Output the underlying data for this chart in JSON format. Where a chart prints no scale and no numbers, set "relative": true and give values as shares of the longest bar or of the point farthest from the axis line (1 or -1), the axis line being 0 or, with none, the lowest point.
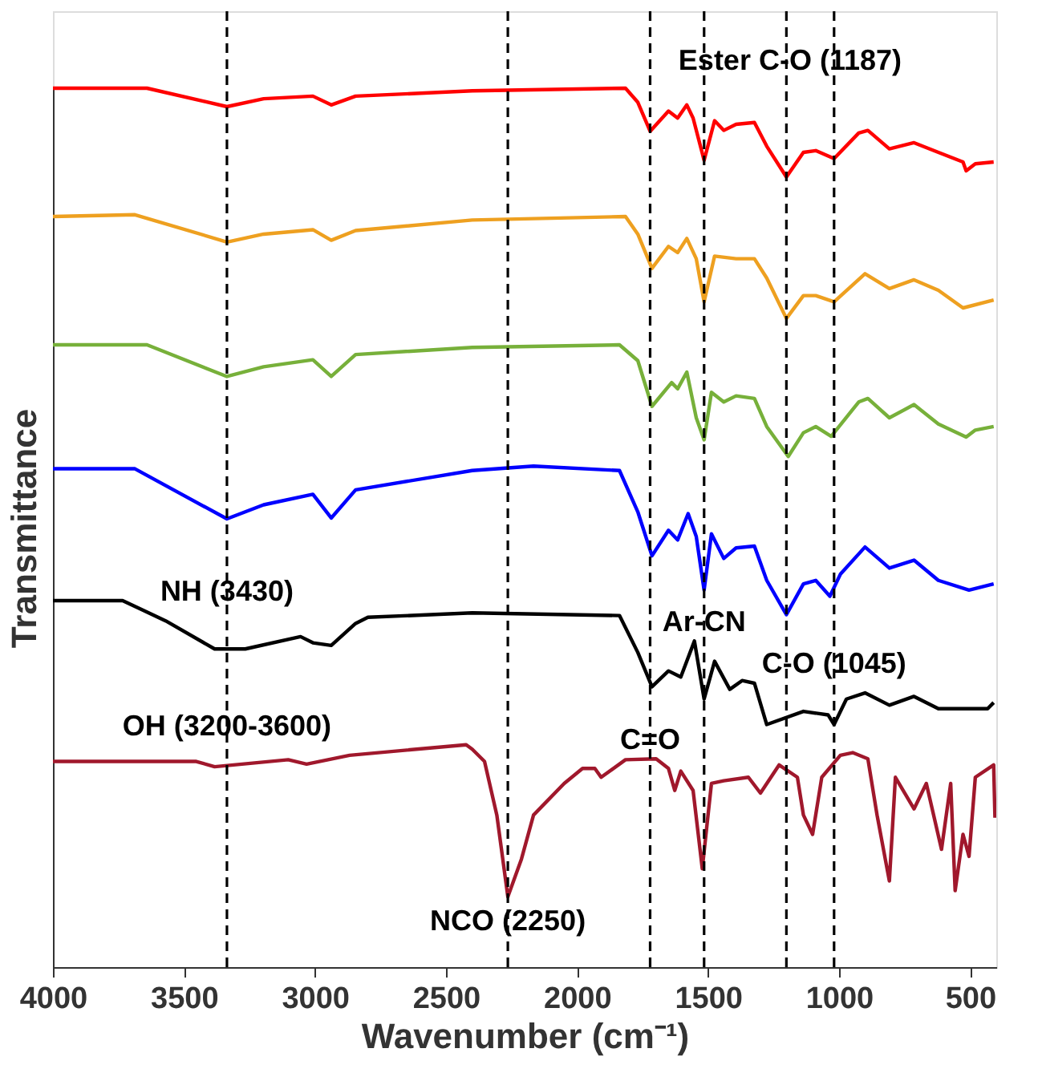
{
  "chart_data": {
    "type": "line",
    "relative": true,
    "xlabel": "Wavenumber (cm⁻¹)",
    "ylabel": "Transmittance",
    "xlim": [
      4000,
      400
    ],
    "xticks": [
      4000,
      3500,
      3000,
      2500,
      2000,
      1500,
      1000,
      500
    ],
    "grid": false,
    "line_style": "solid",
    "marker": "none",
    "series": [
      {
        "color": "#ff0000",
        "x": [
          4000,
          3641,
          3336,
          3196,
          3008,
          2938,
          2845,
          2400,
          1815,
          1768,
          1721,
          1651,
          1616,
          1581,
          1557,
          1515,
          1475,
          1440,
          1393,
          1323,
          1276,
          1201,
          1136,
          1089,
          1019,
          925,
          890,
          808,
          714,
          621,
          527,
          515,
          480,
          410
        ],
        "values": [
          1.0,
          1.0,
          0.979,
          0.988,
          0.991,
          0.981,
          0.991,
          0.997,
          1.0,
          0.984,
          0.951,
          0.974,
          0.966,
          0.981,
          0.966,
          0.918,
          0.963,
          0.952,
          0.959,
          0.961,
          0.934,
          0.899,
          0.927,
          0.929,
          0.92,
          0.949,
          0.952,
          0.931,
          0.938,
          0.927,
          0.916,
          0.906,
          0.914,
          0.916
        ]
      },
      {
        "color": "#eea020",
        "x": [
          4000,
          3687,
          3336,
          3196,
          3008,
          2938,
          2845,
          2400,
          1815,
          1768,
          1714,
          1651,
          1616,
          1581,
          1545,
          1515,
          1475,
          1393,
          1323,
          1276,
          1201,
          1136,
          1089,
          1019,
          901,
          808,
          714,
          621,
          527,
          410
        ],
        "values": [
          0.854,
          0.856,
          0.825,
          0.834,
          0.839,
          0.827,
          0.838,
          0.85,
          0.854,
          0.834,
          0.795,
          0.82,
          0.813,
          0.829,
          0.806,
          0.757,
          0.809,
          0.806,
          0.806,
          0.784,
          0.738,
          0.764,
          0.764,
          0.757,
          0.789,
          0.772,
          0.782,
          0.77,
          0.75,
          0.759
        ]
      },
      {
        "color": "#77b03a",
        "x": [
          4000,
          3641,
          3336,
          3196,
          3008,
          2938,
          2845,
          2400,
          1838,
          1768,
          1714,
          1639,
          1616,
          1581,
          1545,
          1515,
          1487,
          1440,
          1393,
          1323,
          1276,
          1194,
          1136,
          1089,
          1030,
          925,
          890,
          808,
          714,
          621,
          515,
          480,
          410
        ],
        "values": [
          0.708,
          0.708,
          0.672,
          0.683,
          0.691,
          0.672,
          0.697,
          0.705,
          0.708,
          0.69,
          0.638,
          0.665,
          0.658,
          0.677,
          0.625,
          0.6,
          0.654,
          0.643,
          0.65,
          0.647,
          0.615,
          0.581,
          0.608,
          0.615,
          0.604,
          0.643,
          0.647,
          0.625,
          0.64,
          0.618,
          0.603,
          0.611,
          0.615
        ]
      },
      {
        "color": "#0000ff",
        "x": [
          4000,
          3687,
          3336,
          3196,
          3008,
          2938,
          2845,
          2400,
          2166,
          1838,
          1768,
          1714,
          1651,
          1616,
          1576,
          1545,
          1515,
          1487,
          1440,
          1393,
          1323,
          1276,
          1201,
          1136,
          1089,
          1035,
          995,
          901,
          808,
          714,
          621,
          504,
          410
        ],
        "values": [
          0.567,
          0.567,
          0.51,
          0.526,
          0.538,
          0.511,
          0.543,
          0.565,
          0.57,
          0.565,
          0.518,
          0.468,
          0.497,
          0.486,
          0.516,
          0.49,
          0.429,
          0.493,
          0.465,
          0.477,
          0.479,
          0.44,
          0.401,
          0.436,
          0.44,
          0.422,
          0.447,
          0.478,
          0.454,
          0.463,
          0.44,
          0.429,
          0.436
        ]
      },
      {
        "color": "#000000",
        "x": [
          4000,
          3734,
          3570,
          3383,
          3266,
          3055,
          3008,
          2938,
          2845,
          2798,
          2400,
          1838,
          1768,
          1714,
          1651,
          1604,
          1552,
          1515,
          1475,
          1417,
          1370,
          1323,
          1276,
          1136,
          1042,
          1019,
          972,
          901,
          808,
          714,
          621,
          433,
          410
        ],
        "values": [
          0.417,
          0.417,
          0.394,
          0.362,
          0.362,
          0.376,
          0.369,
          0.366,
          0.391,
          0.398,
          0.403,
          0.4,
          0.358,
          0.319,
          0.337,
          0.33,
          0.371,
          0.305,
          0.348,
          0.316,
          0.326,
          0.323,
          0.276,
          0.291,
          0.287,
          0.276,
          0.305,
          0.312,
          0.298,
          0.308,
          0.294,
          0.294,
          0.301
        ]
      },
      {
        "color": "#a0182c",
        "x": [
          4000,
          3453,
          3383,
          3102,
          3032,
          2868,
          2423,
          2400,
          2353,
          2306,
          2264,
          2212,
          2166,
          2049,
          1979,
          1932,
          1908,
          1815,
          1698,
          1651,
          1627,
          1604,
          1557,
          1522,
          1487,
          1440,
          1346,
          1300,
          1229,
          1159,
          1136,
          1101,
          1066,
          995,
          948,
          890,
          855,
          808,
          785,
          714,
          667,
          609,
          574,
          557,
          527,
          504,
          480,
          410,
          405
        ],
        "values": [
          0.234,
          0.234,
          0.228,
          0.236,
          0.231,
          0.241,
          0.253,
          0.248,
          0.234,
          0.173,
          0.08,
          0.123,
          0.173,
          0.209,
          0.226,
          0.226,
          0.216,
          0.236,
          0.237,
          0.226,
          0.201,
          0.223,
          0.201,
          0.112,
          0.209,
          0.212,
          0.216,
          0.198,
          0.23,
          0.216,
          0.173,
          0.151,
          0.216,
          0.241,
          0.244,
          0.237,
          0.173,
          0.098,
          0.216,
          0.18,
          0.209,
          0.134,
          0.209,
          0.087,
          0.151,
          0.126,
          0.216,
          0.23,
          0.17
        ]
      }
    ],
    "ref_lines": [
      {
        "axis": "x",
        "value": 3336,
        "label": null,
        "line_style": "dashed",
        "color": "#000000"
      },
      {
        "axis": "x",
        "value": 2264,
        "label": null,
        "line_style": "dashed",
        "color": "#000000"
      },
      {
        "axis": "x",
        "value": 1721,
        "label": null,
        "line_style": "dashed",
        "color": "#000000"
      },
      {
        "axis": "x",
        "value": 1515,
        "label": null,
        "line_style": "dashed",
        "color": "#000000"
      },
      {
        "axis": "x",
        "value": 1201,
        "label": null,
        "line_style": "dashed",
        "color": "#000000"
      },
      {
        "axis": "x",
        "value": 1019,
        "label": null,
        "line_style": "dashed",
        "color": "#000000"
      }
    ],
    "annotations": [
      {
        "text": "Ester C-O (1187)",
        "x": 1187,
        "y": 1.03
      },
      {
        "text": "NH (3430)",
        "x": 3336,
        "y": 0.426
      },
      {
        "text": "OH (3200-3600)",
        "x": 3336,
        "y": 0.273
      },
      {
        "text": "Ar-CN",
        "x": 1515,
        "y": 0.391
      },
      {
        "text": "C-O (1045)",
        "x": 1019,
        "y": 0.344
      },
      {
        "text": "C=O",
        "x": 1721,
        "y": 0.257
      },
      {
        "text": "NCO (2250)",
        "x": 2264,
        "y": 0.051
      }
    ]
  }
}
